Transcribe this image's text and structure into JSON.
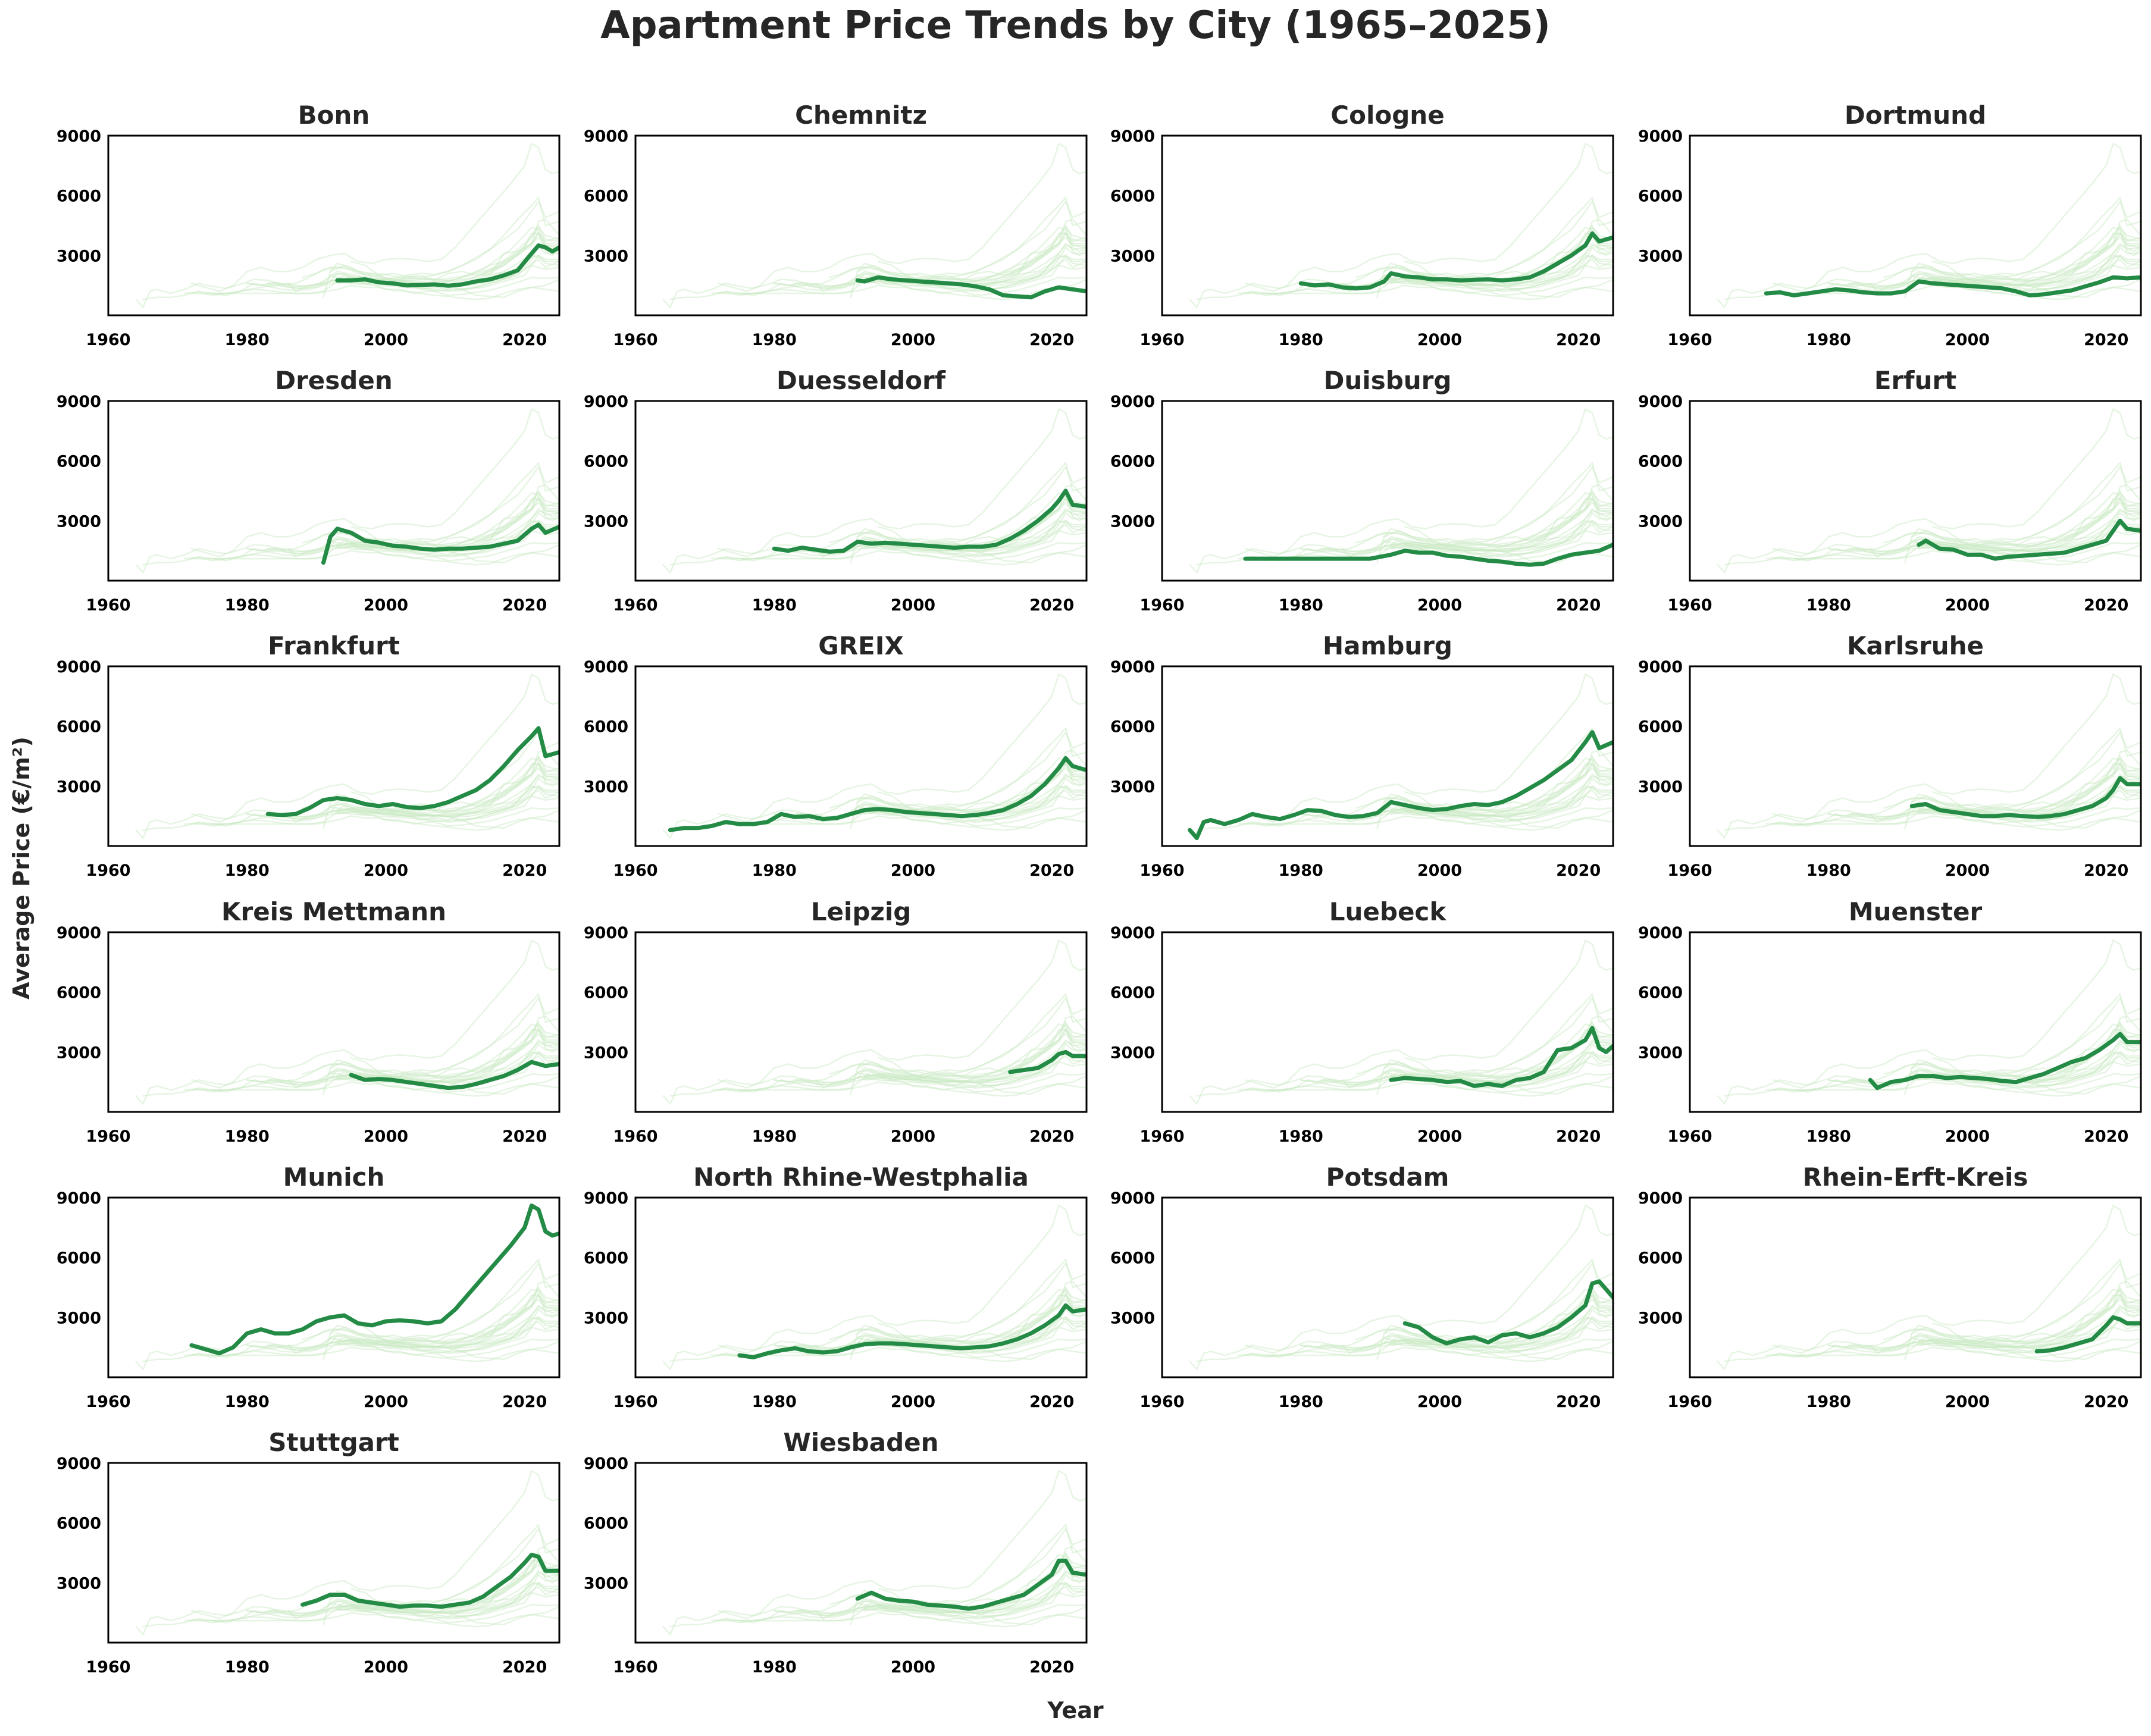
{
  "figure": {
    "title": "Apartment Price Trends by City (1965–2025)",
    "xlabel": "Year",
    "ylabel": "Average Price (€/m²)",
    "colors": {
      "highlight": "#238b45",
      "background_lines": "#c7e9c0",
      "axes": "#000000",
      "text": "#262626"
    }
  },
  "chart_data": {
    "type": "line",
    "layout": "small-multiples",
    "grid": false,
    "xlim": [
      1960,
      2025
    ],
    "ylim": [
      0,
      9000
    ],
    "xticks": [
      1960,
      1980,
      2000,
      2020
    ],
    "yticks": [
      3000,
      6000,
      9000
    ],
    "xlabel": "Year",
    "ylabel": "Average Price (€/m²)",
    "series": [
      {
        "name": "Bonn",
        "x": [
          1993,
          1995,
          1997,
          1999,
          2001,
          2003,
          2005,
          2007,
          2009,
          2011,
          2013,
          2015,
          2017,
          2019,
          2021,
          2022,
          2023,
          2024,
          2025
        ],
        "y": [
          1750,
          1750,
          1800,
          1650,
          1600,
          1500,
          1520,
          1550,
          1480,
          1550,
          1700,
          1800,
          2000,
          2250,
          3100,
          3500,
          3400,
          3200,
          3400
        ]
      },
      {
        "name": "Chemnitz",
        "x": [
          1992,
          1993,
          1995,
          1997,
          1999,
          2001,
          2003,
          2005,
          2007,
          2009,
          2011,
          2013,
          2015,
          2017,
          2019,
          2021,
          2023,
          2025
        ],
        "y": [
          1750,
          1700,
          1900,
          1800,
          1750,
          1700,
          1650,
          1600,
          1550,
          1450,
          1300,
          1000,
          950,
          900,
          1200,
          1400,
          1300,
          1200
        ]
      },
      {
        "name": "Cologne",
        "x": [
          1980,
          1982,
          1984,
          1986,
          1988,
          1990,
          1992,
          1993,
          1995,
          1997,
          1999,
          2001,
          2003,
          2005,
          2007,
          2009,
          2011,
          2013,
          2015,
          2017,
          2019,
          2021,
          2022,
          2023,
          2025
        ],
        "y": [
          1600,
          1500,
          1550,
          1400,
          1350,
          1400,
          1700,
          2100,
          1950,
          1900,
          1800,
          1800,
          1750,
          1780,
          1800,
          1750,
          1800,
          1900,
          2200,
          2600,
          3000,
          3500,
          4100,
          3700,
          3900
        ]
      },
      {
        "name": "Dortmund",
        "x": [
          1971,
          1973,
          1975,
          1977,
          1979,
          1981,
          1983,
          1985,
          1987,
          1989,
          1991,
          1993,
          1995,
          1997,
          1999,
          2001,
          2003,
          2005,
          2007,
          2009,
          2011,
          2013,
          2015,
          2017,
          2019,
          2021,
          2023,
          2025
        ],
        "y": [
          1100,
          1150,
          1000,
          1100,
          1200,
          1300,
          1250,
          1150,
          1100,
          1100,
          1200,
          1700,
          1600,
          1550,
          1500,
          1450,
          1400,
          1350,
          1200,
          1000,
          1050,
          1150,
          1250,
          1450,
          1650,
          1900,
          1850,
          1900
        ]
      },
      {
        "name": "Dresden",
        "x": [
          1991,
          1992,
          1993,
          1995,
          1997,
          1999,
          2001,
          2003,
          2005,
          2007,
          2009,
          2011,
          2013,
          2015,
          2017,
          2019,
          2021,
          2022,
          2023,
          2025
        ],
        "y": [
          900,
          2200,
          2600,
          2400,
          2000,
          1900,
          1750,
          1700,
          1600,
          1550,
          1600,
          1600,
          1650,
          1700,
          1850,
          2000,
          2600,
          2800,
          2400,
          2700
        ]
      },
      {
        "name": "Duesseldorf",
        "x": [
          1980,
          1982,
          1984,
          1986,
          1988,
          1990,
          1992,
          1994,
          1996,
          1998,
          2000,
          2002,
          2004,
          2006,
          2008,
          2010,
          2012,
          2014,
          2016,
          2018,
          2020,
          2021,
          2022,
          2023,
          2025
        ],
        "y": [
          1600,
          1500,
          1650,
          1550,
          1450,
          1500,
          1950,
          1850,
          1900,
          1850,
          1800,
          1750,
          1700,
          1650,
          1700,
          1700,
          1800,
          2100,
          2500,
          3000,
          3600,
          4000,
          4500,
          3800,
          3700
        ]
      },
      {
        "name": "Duisburg",
        "x": [
          1972,
          1975,
          1980,
          1985,
          1990,
          1993,
          1995,
          1997,
          1999,
          2001,
          2003,
          2005,
          2007,
          2009,
          2011,
          2013,
          2015,
          2017,
          2019,
          2021,
          2023,
          2025
        ],
        "y": [
          1100,
          1100,
          1100,
          1100,
          1100,
          1300,
          1500,
          1400,
          1400,
          1250,
          1200,
          1100,
          1000,
          950,
          850,
          800,
          850,
          1100,
          1300,
          1400,
          1500,
          1800
        ]
      },
      {
        "name": "Erfurt",
        "x": [
          1993,
          1994,
          1996,
          1998,
          2000,
          2002,
          2004,
          2006,
          2008,
          2010,
          2012,
          2014,
          2016,
          2018,
          2020,
          2021,
          2022,
          2023,
          2025
        ],
        "y": [
          1800,
          2000,
          1600,
          1550,
          1300,
          1300,
          1100,
          1200,
          1250,
          1300,
          1350,
          1400,
          1600,
          1800,
          2000,
          2500,
          3000,
          2600,
          2500
        ]
      },
      {
        "name": "Frankfurt",
        "x": [
          1983,
          1985,
          1987,
          1989,
          1991,
          1993,
          1995,
          1997,
          1999,
          2001,
          2003,
          2005,
          2007,
          2009,
          2011,
          2013,
          2015,
          2017,
          2019,
          2021,
          2022,
          2023,
          2025
        ],
        "y": [
          1600,
          1550,
          1600,
          1900,
          2300,
          2400,
          2300,
          2100,
          2000,
          2100,
          1950,
          1900,
          2000,
          2200,
          2500,
          2800,
          3300,
          4000,
          4800,
          5500,
          5900,
          4500,
          4700
        ]
      },
      {
        "name": "GREIX",
        "x": [
          1965,
          1967,
          1969,
          1971,
          1973,
          1975,
          1977,
          1979,
          1981,
          1983,
          1985,
          1987,
          1989,
          1991,
          1993,
          1995,
          1997,
          1999,
          2001,
          2003,
          2005,
          2007,
          2009,
          2011,
          2013,
          2015,
          2017,
          2019,
          2021,
          2022,
          2023,
          2025
        ],
        "y": [
          800,
          900,
          900,
          1000,
          1200,
          1100,
          1100,
          1200,
          1600,
          1450,
          1500,
          1350,
          1400,
          1600,
          1800,
          1850,
          1800,
          1700,
          1650,
          1600,
          1550,
          1500,
          1550,
          1650,
          1800,
          2100,
          2500,
          3100,
          3900,
          4400,
          4000,
          3800
        ]
      },
      {
        "name": "Hamburg",
        "x": [
          1964,
          1965,
          1966,
          1967,
          1969,
          1971,
          1973,
          1975,
          1977,
          1979,
          1981,
          1983,
          1985,
          1987,
          1989,
          1991,
          1993,
          1995,
          1997,
          1999,
          2001,
          2003,
          2005,
          2007,
          2009,
          2011,
          2013,
          2015,
          2017,
          2019,
          2021,
          2022,
          2023,
          2025
        ],
        "y": [
          800,
          400,
          1200,
          1300,
          1100,
          1300,
          1600,
          1450,
          1350,
          1550,
          1800,
          1750,
          1550,
          1450,
          1500,
          1650,
          2200,
          2050,
          1900,
          1800,
          1850,
          2000,
          2100,
          2050,
          2200,
          2500,
          2900,
          3300,
          3800,
          4300,
          5200,
          5700,
          4900,
          5200
        ]
      },
      {
        "name": "Karlsruhe",
        "x": [
          1992,
          1994,
          1996,
          1998,
          2000,
          2002,
          2004,
          2006,
          2008,
          2010,
          2012,
          2014,
          2016,
          2018,
          2020,
          2021,
          2022,
          2023,
          2025
        ],
        "y": [
          2000,
          2100,
          1800,
          1700,
          1600,
          1500,
          1500,
          1550,
          1500,
          1450,
          1500,
          1600,
          1800,
          2000,
          2400,
          2800,
          3400,
          3100,
          3100
        ]
      },
      {
        "name": "Kreis Mettmann",
        "x": [
          1995,
          1997,
          1999,
          2001,
          2003,
          2005,
          2007,
          2009,
          2011,
          2013,
          2015,
          2017,
          2019,
          2021,
          2023,
          2025
        ],
        "y": [
          1850,
          1600,
          1650,
          1600,
          1500,
          1400,
          1300,
          1200,
          1250,
          1400,
          1600,
          1800,
          2100,
          2500,
          2300,
          2400
        ]
      },
      {
        "name": "Leipzig",
        "x": [
          2014,
          2016,
          2018,
          2020,
          2021,
          2022,
          2023,
          2025
        ],
        "y": [
          2000,
          2100,
          2200,
          2600,
          2900,
          3000,
          2800,
          2800
        ]
      },
      {
        "name": "Luebeck",
        "x": [
          1993,
          1995,
          1997,
          1999,
          2001,
          2003,
          2005,
          2007,
          2009,
          2011,
          2013,
          2015,
          2017,
          2019,
          2021,
          2022,
          2023,
          2024,
          2025
        ],
        "y": [
          1600,
          1700,
          1650,
          1600,
          1500,
          1550,
          1300,
          1400,
          1300,
          1600,
          1700,
          2000,
          3100,
          3200,
          3600,
          4200,
          3200,
          3000,
          3300
        ]
      },
      {
        "name": "Muenster",
        "x": [
          1986,
          1987,
          1989,
          1991,
          1993,
          1995,
          1997,
          1999,
          2001,
          2003,
          2005,
          2007,
          2009,
          2011,
          2013,
          2015,
          2017,
          2019,
          2021,
          2022,
          2023,
          2025
        ],
        "y": [
          1600,
          1200,
          1500,
          1600,
          1800,
          1800,
          1700,
          1750,
          1700,
          1650,
          1550,
          1500,
          1700,
          1900,
          2200,
          2500,
          2700,
          3100,
          3600,
          3900,
          3500,
          3500
        ]
      },
      {
        "name": "Munich",
        "x": [
          1972,
          1974,
          1976,
          1978,
          1980,
          1982,
          1984,
          1986,
          1988,
          1990,
          1992,
          1994,
          1996,
          1998,
          2000,
          2002,
          2004,
          2006,
          2008,
          2010,
          2012,
          2014,
          2016,
          2018,
          2020,
          2021,
          2022,
          2023,
          2024,
          2025
        ],
        "y": [
          1600,
          1400,
          1200,
          1500,
          2200,
          2400,
          2200,
          2200,
          2400,
          2800,
          3000,
          3100,
          2700,
          2600,
          2800,
          2850,
          2800,
          2700,
          2800,
          3400,
          4200,
          5000,
          5800,
          6600,
          7500,
          8600,
          8400,
          7300,
          7100,
          7200
        ]
      },
      {
        "name": "North Rhine-Westphalia",
        "x": [
          1975,
          1977,
          1979,
          1981,
          1983,
          1985,
          1987,
          1989,
          1991,
          1993,
          1995,
          1997,
          1999,
          2001,
          2003,
          2005,
          2007,
          2009,
          2011,
          2013,
          2015,
          2017,
          2019,
          2021,
          2022,
          2023,
          2025
        ],
        "y": [
          1100,
          1000,
          1200,
          1350,
          1450,
          1300,
          1250,
          1300,
          1500,
          1650,
          1700,
          1700,
          1650,
          1600,
          1550,
          1500,
          1450,
          1500,
          1550,
          1700,
          1900,
          2200,
          2600,
          3100,
          3600,
          3300,
          3400
        ]
      },
      {
        "name": "Potsdam",
        "x": [
          1995,
          1997,
          1999,
          2001,
          2003,
          2005,
          2007,
          2009,
          2011,
          2013,
          2015,
          2017,
          2019,
          2021,
          2022,
          2023,
          2025
        ],
        "y": [
          2700,
          2500,
          2000,
          1700,
          1900,
          2000,
          1750,
          2100,
          2200,
          2000,
          2200,
          2500,
          3000,
          3600,
          4700,
          4800,
          4000
        ]
      },
      {
        "name": "Rhein-Erft-Kreis",
        "x": [
          2010,
          2012,
          2014,
          2016,
          2018,
          2020,
          2021,
          2022,
          2023,
          2025
        ],
        "y": [
          1300,
          1350,
          1500,
          1700,
          1900,
          2600,
          3000,
          2900,
          2700,
          2700
        ]
      },
      {
        "name": "Stuttgart",
        "x": [
          1988,
          1990,
          1992,
          1994,
          1996,
          1998,
          2000,
          2002,
          2004,
          2006,
          2008,
          2010,
          2012,
          2014,
          2016,
          2018,
          2020,
          2021,
          2022,
          2023,
          2025
        ],
        "y": [
          1900,
          2100,
          2400,
          2400,
          2100,
          2000,
          1900,
          1800,
          1850,
          1850,
          1800,
          1900,
          2000,
          2300,
          2800,
          3300,
          4000,
          4400,
          4300,
          3600,
          3600
        ]
      },
      {
        "name": "Wiesbaden",
        "x": [
          1992,
          1994,
          1996,
          1998,
          2000,
          2002,
          2004,
          2006,
          2008,
          2010,
          2012,
          2014,
          2016,
          2018,
          2020,
          2021,
          2022,
          2023,
          2025
        ],
        "y": [
          2200,
          2500,
          2200,
          2100,
          2050,
          1900,
          1850,
          1800,
          1700,
          1800,
          2000,
          2200,
          2400,
          2900,
          3400,
          4100,
          4100,
          3500,
          3400
        ]
      }
    ]
  }
}
